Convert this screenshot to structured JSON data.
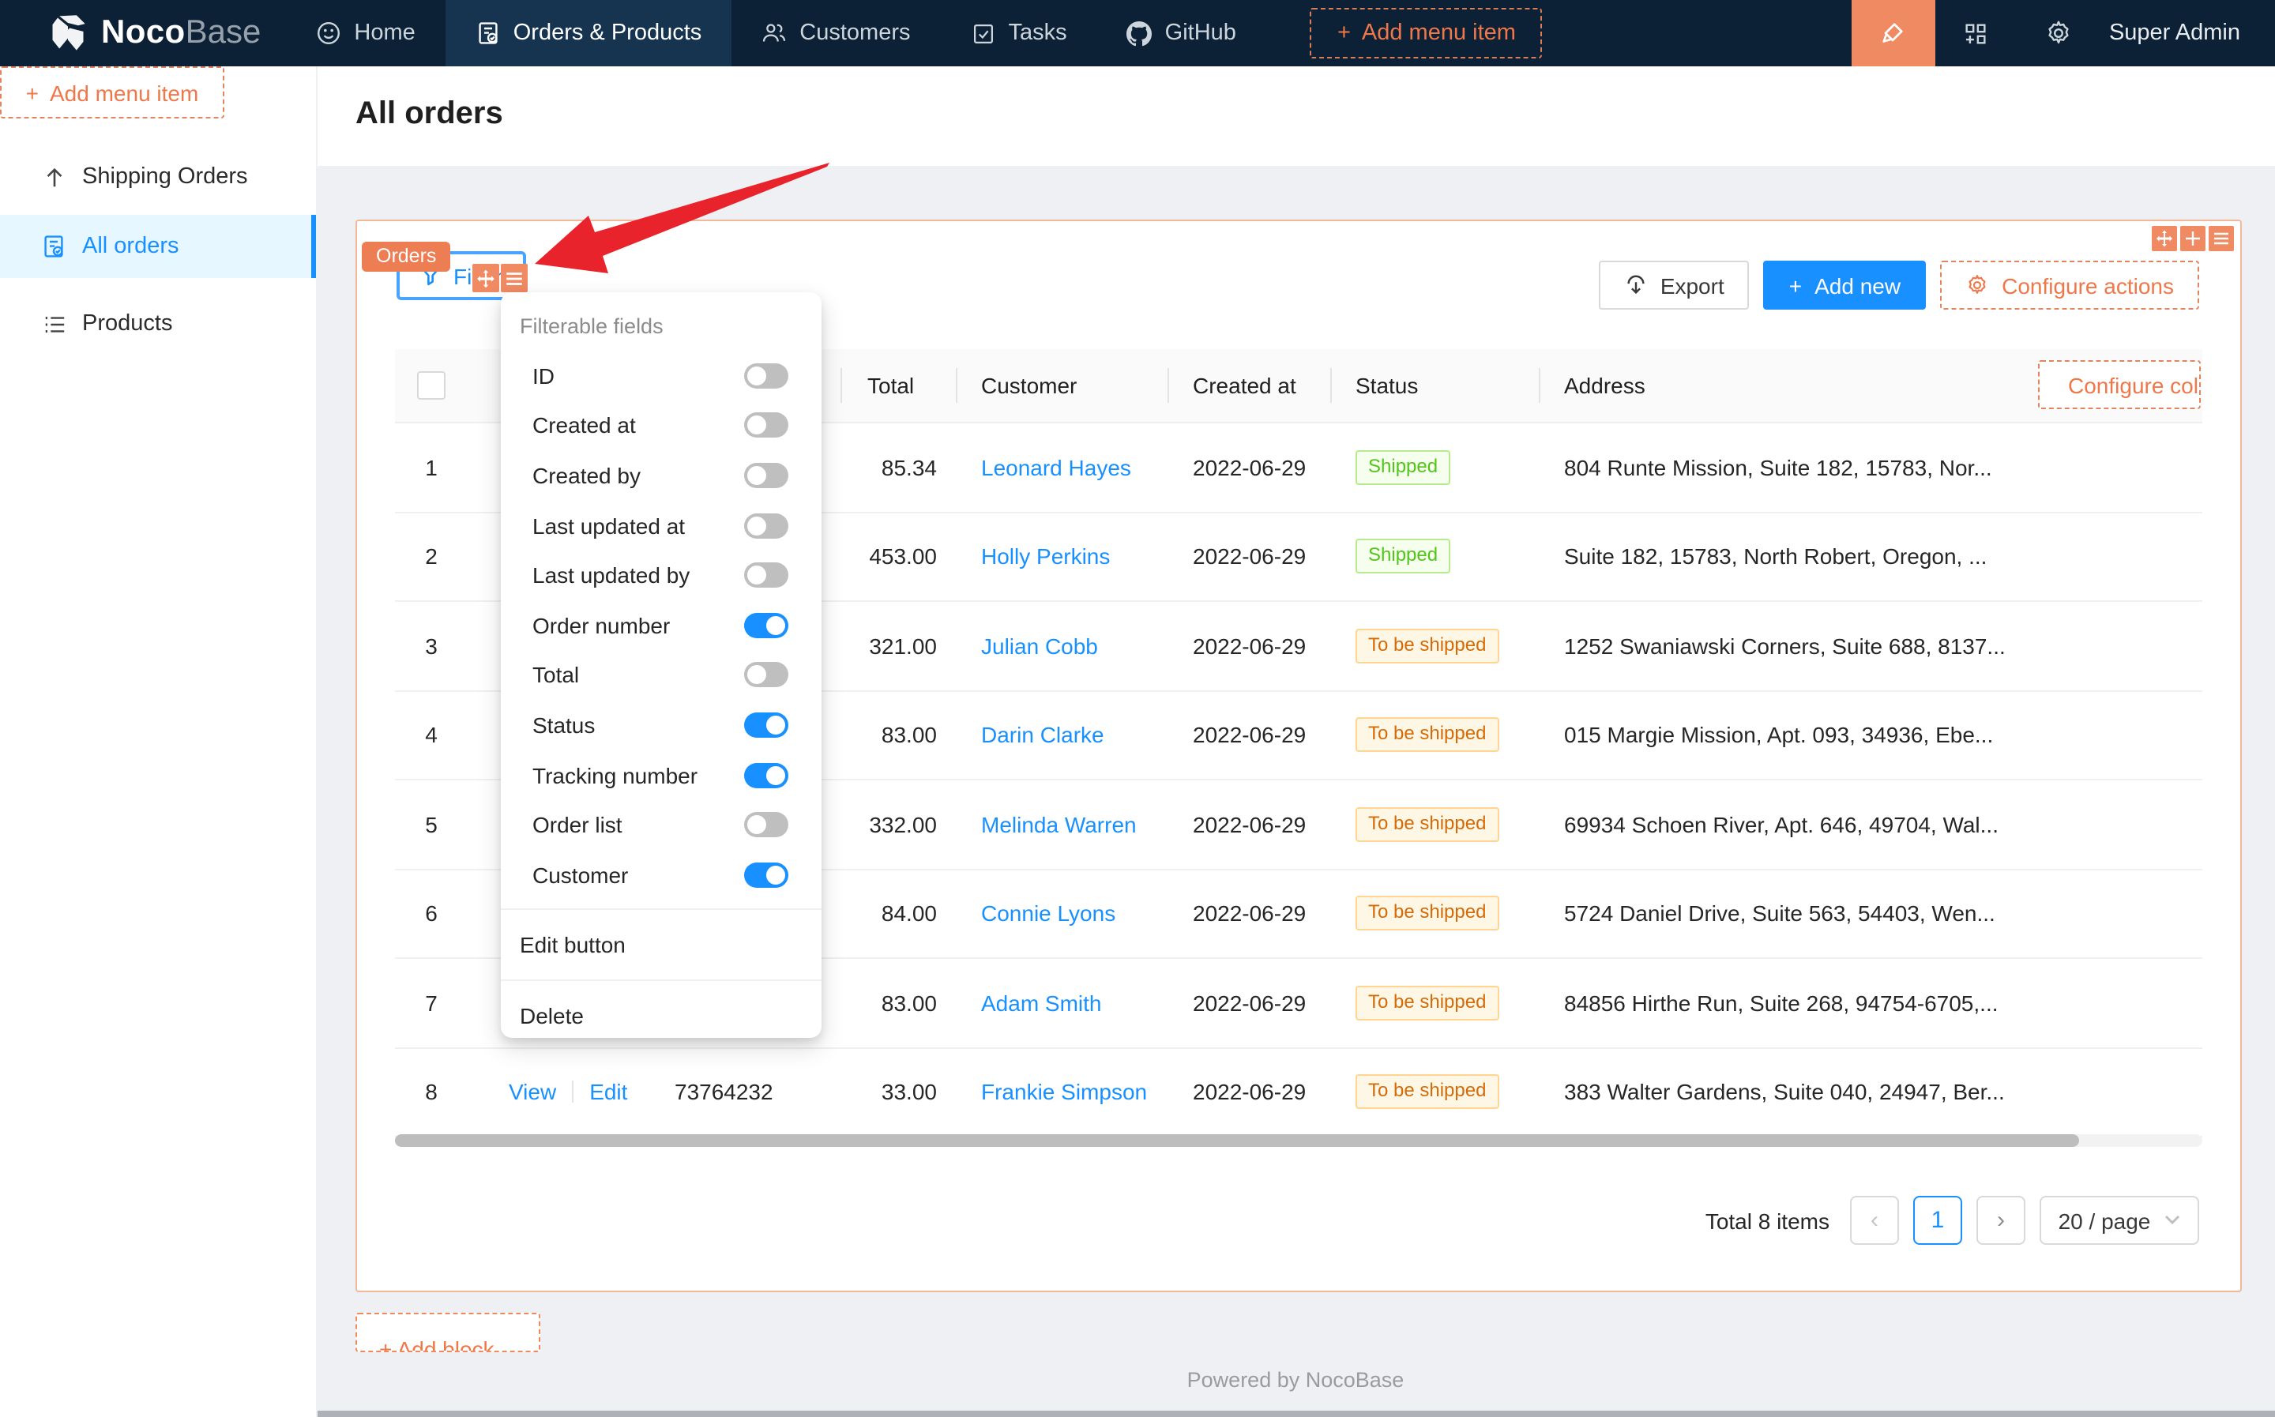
{
  "navbar": {
    "logo": {
      "bold": "Noco",
      "light": "Base"
    },
    "items": [
      {
        "label": "Home",
        "icon": "smiley-icon",
        "active": false
      },
      {
        "label": "Orders & Products",
        "icon": "document-check-icon",
        "active": true
      },
      {
        "label": "Customers",
        "icon": "users-icon",
        "active": false
      },
      {
        "label": "Tasks",
        "icon": "check-square-icon",
        "active": false
      },
      {
        "label": "GitHub",
        "icon": "github-icon",
        "active": false
      }
    ],
    "add_menu_item_label": "Add menu item",
    "user": "Super Admin"
  },
  "sidebar": {
    "items": [
      {
        "label": "Shipping Orders",
        "icon": "arrow-up-icon",
        "active": false
      },
      {
        "label": "All orders",
        "icon": "document-check-icon",
        "active": true
      },
      {
        "label": "Products",
        "icon": "list-icon",
        "active": false
      }
    ],
    "add_menu_item_label": "Add menu item"
  },
  "page": {
    "title": "All orders",
    "footer": "Powered by NocoBase",
    "add_block_label": "+ Add block"
  },
  "orders_block": {
    "tag": "Orders",
    "filter_label": "Filter",
    "export_label": "Export",
    "add_new_label": "Add new",
    "configure_actions_label": "Configure actions",
    "configure_columns_label": "Configure columns"
  },
  "dropdown": {
    "title": "Filterable fields",
    "fields": [
      {
        "label": "ID",
        "on": false
      },
      {
        "label": "Created at",
        "on": false
      },
      {
        "label": "Created by",
        "on": false
      },
      {
        "label": "Last updated at",
        "on": false
      },
      {
        "label": "Last updated by",
        "on": false
      },
      {
        "label": "Order number",
        "on": true
      },
      {
        "label": "Total",
        "on": false
      },
      {
        "label": "Status",
        "on": true
      },
      {
        "label": "Tracking number",
        "on": true
      },
      {
        "label": "Order list",
        "on": false
      },
      {
        "label": "Customer",
        "on": true
      }
    ],
    "actions": [
      "Edit button",
      "Delete"
    ]
  },
  "table": {
    "columns": [
      "Total",
      "Customer",
      "Created at",
      "Status",
      "Address"
    ],
    "actions": {
      "view": "View",
      "edit": "Edit"
    },
    "rows": [
      {
        "index": "1",
        "number": "",
        "total": "85.34",
        "customer": "Leonard Hayes",
        "created_at": "2022-06-29",
        "status": "Shipped",
        "status_type": "success",
        "address": "804 Runte Mission, Suite 182, 15783, Nor..."
      },
      {
        "index": "2",
        "number": "",
        "total": "453.00",
        "customer": "Holly Perkins",
        "created_at": "2022-06-29",
        "status": "Shipped",
        "status_type": "success",
        "address": "Suite 182, 15783, North Robert, Oregon, ..."
      },
      {
        "index": "3",
        "number": "",
        "total": "321.00",
        "customer": "Julian Cobb",
        "created_at": "2022-06-29",
        "status": "To be shipped",
        "status_type": "warning",
        "address": "1252 Swaniawski Corners, Suite 688, 8137..."
      },
      {
        "index": "4",
        "number": "",
        "total": "83.00",
        "customer": "Darin Clarke",
        "created_at": "2022-06-29",
        "status": "To be shipped",
        "status_type": "warning",
        "address": "015 Margie Mission, Apt. 093, 34936, Ebe..."
      },
      {
        "index": "5",
        "number": "",
        "total": "332.00",
        "customer": "Melinda Warren",
        "created_at": "2022-06-29",
        "status": "To be shipped",
        "status_type": "warning",
        "address": "69934 Schoen River, Apt. 646, 49704, Wal..."
      },
      {
        "index": "6",
        "number": "",
        "total": "84.00",
        "customer": "Connie Lyons",
        "created_at": "2022-06-29",
        "status": "To be shipped",
        "status_type": "warning",
        "address": "5724 Daniel Drive, Suite 563, 54403, Wen..."
      },
      {
        "index": "7",
        "number": "",
        "total": "83.00",
        "customer": "Adam Smith",
        "created_at": "2022-06-29",
        "status": "To be shipped",
        "status_type": "warning",
        "address": "84856 Hirthe Run, Suite 268, 94754-6705,..."
      },
      {
        "index": "8",
        "number": "73764232",
        "total": "33.00",
        "customer": "Frankie Simpson",
        "created_at": "2022-06-29",
        "status": "To be shipped",
        "status_type": "warning",
        "address": "383 Walter Gardens, Suite 040, 24947, Ber..."
      }
    ]
  },
  "pagination": {
    "total_text": "Total 8 items",
    "page": "1",
    "page_size": "20 / page"
  },
  "colors": {
    "navbar_bg": "#0c2135",
    "navbar_active_bg": "#163450",
    "accent_blue": "#1890ff",
    "designer_orange": "#ef8a63",
    "orange_text": "#ee7849",
    "badge_success_text": "#52c41a",
    "badge_warning_text": "#d46b08",
    "arrow_red": "#e8232b"
  }
}
